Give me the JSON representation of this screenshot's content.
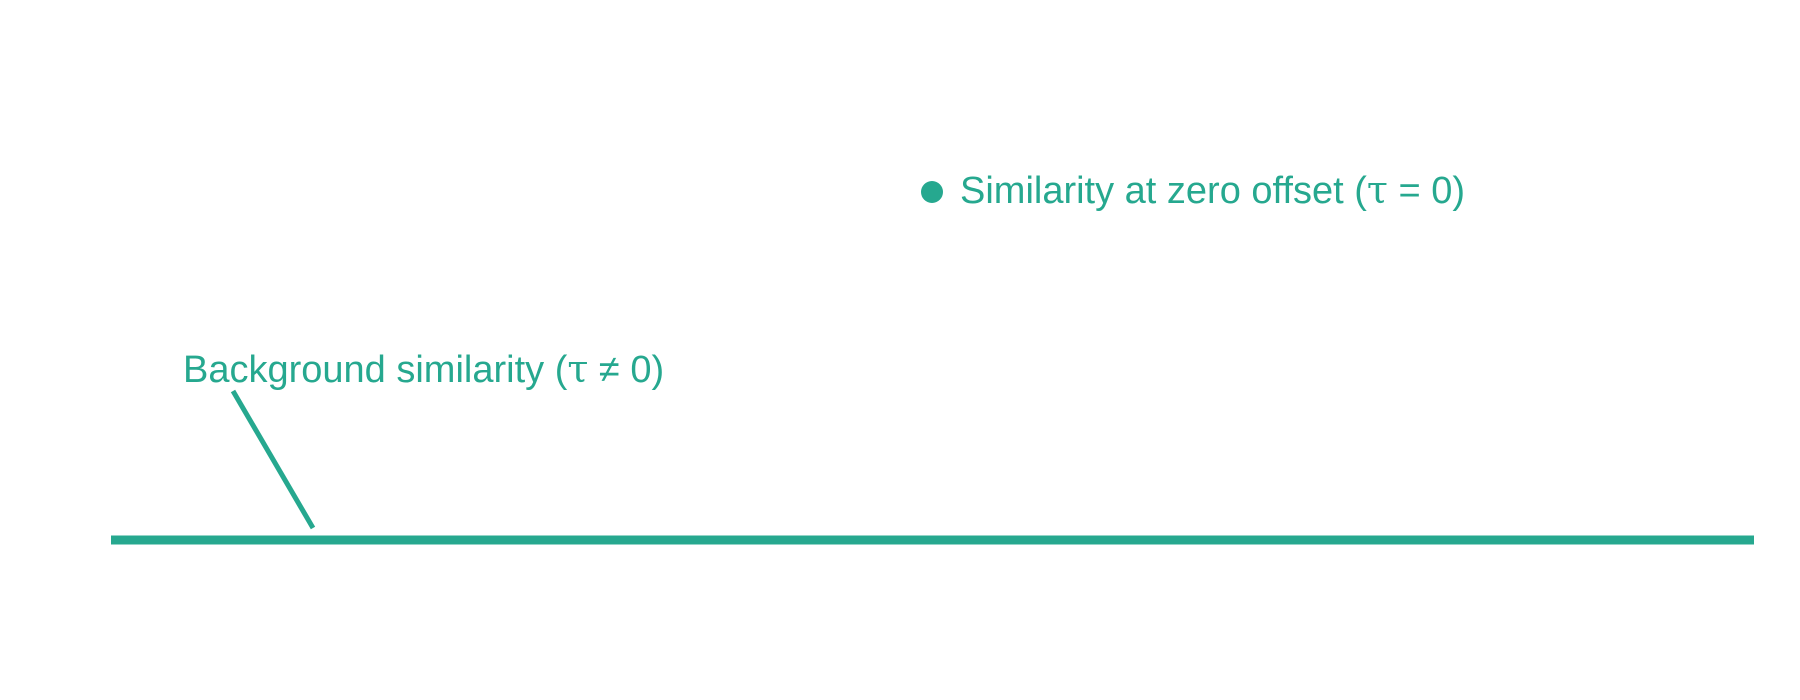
{
  "diagram": {
    "accent_color": "#26a88f",
    "peak": {
      "marker_icon": "filled-circle",
      "label_prefix": "Similarity at zero offset (",
      "label_symbol": "τ",
      "label_suffix": " = 0)"
    },
    "background": {
      "label_prefix": "Background similarity (",
      "label_symbol": "τ",
      "label_suffix": " ≠ 0)"
    }
  }
}
